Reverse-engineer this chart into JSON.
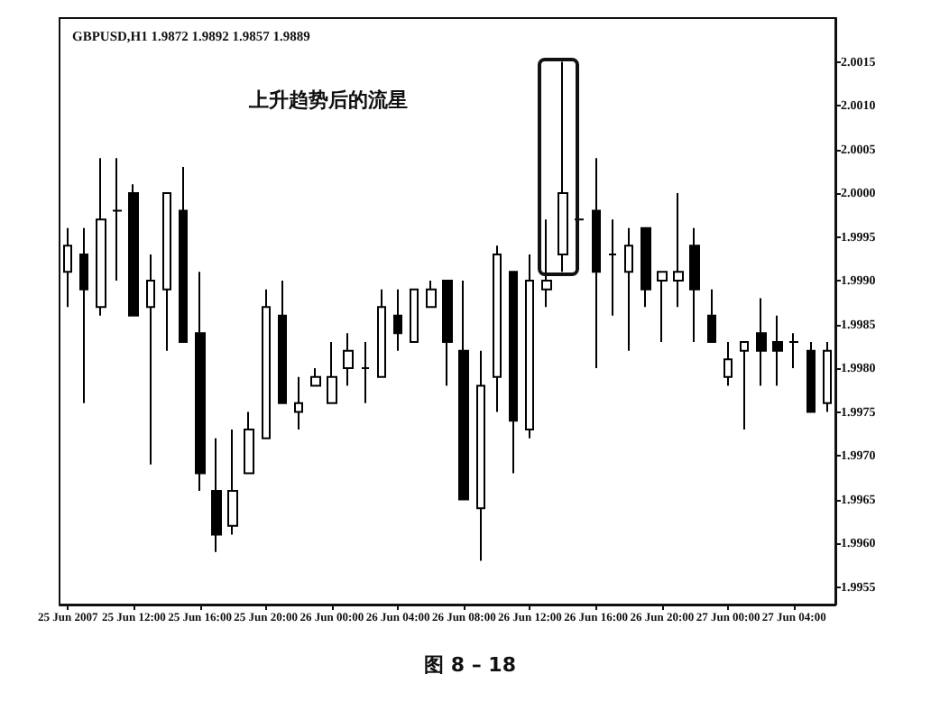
{
  "chart_data": {
    "type": "candlestick",
    "title": "GBPUSD,H1 1.9872 1.9892 1.9857 1.9889",
    "annotations": [
      "上升趋势后的流星",
      "图 8 – 18"
    ],
    "categories": [
      "25 Jun 2007",
      null,
      null,
      null,
      "25 Jun 12:00",
      null,
      null,
      null,
      "25 Jun 16:00",
      null,
      null,
      null,
      "25 Jun 20:00",
      null,
      null,
      null,
      "26 Jun 00:00",
      null,
      null,
      null,
      "26 Jun 04:00",
      null,
      null,
      null,
      "26 Jun 08:00",
      null,
      null,
      null,
      "26 Jun 12:00",
      null,
      null,
      null,
      "26 Jun 16:00",
      null,
      null,
      null,
      "26 Jun 20:00",
      null,
      null,
      null,
      "27 Jun 00:00",
      null,
      null,
      null,
      "27 Jun 04:00",
      null,
      null
    ],
    "ohlc": [
      [
        1.9991,
        1.9996,
        1.9987,
        1.9994
      ],
      [
        1.9993,
        1.9996,
        1.9976,
        1.9989
      ],
      [
        1.9987,
        2.0004,
        1.9986,
        1.9997
      ],
      [
        1.9998,
        2.0004,
        1.999,
        1.9998
      ],
      [
        2.0,
        2.0001,
        1.9986,
        1.9986
      ],
      [
        1.9987,
        1.9993,
        1.9969,
        1.999
      ],
      [
        1.9989,
        2.0,
        1.9982,
        2.0
      ],
      [
        1.9998,
        2.0003,
        1.9983,
        1.9983
      ],
      [
        1.9984,
        1.9991,
        1.9966,
        1.9968
      ],
      [
        1.9966,
        1.9972,
        1.9959,
        1.9961
      ],
      [
        1.9962,
        1.9973,
        1.9961,
        1.9966
      ],
      [
        1.9968,
        1.9975,
        1.9968,
        1.9973
      ],
      [
        1.9972,
        1.9989,
        1.9972,
        1.9987
      ],
      [
        1.9986,
        1.999,
        1.9976,
        1.9976
      ],
      [
        1.9975,
        1.9979,
        1.9973,
        1.9976
      ],
      [
        1.9978,
        1.998,
        1.9978,
        1.9979
      ],
      [
        1.9976,
        1.9983,
        1.9976,
        1.9979
      ],
      [
        1.998,
        1.9984,
        1.9978,
        1.9982
      ],
      [
        1.998,
        1.9983,
        1.9976,
        1.998
      ],
      [
        1.9979,
        1.9989,
        1.9979,
        1.9987
      ],
      [
        1.9986,
        1.9989,
        1.9982,
        1.9984
      ],
      [
        1.9983,
        1.9989,
        1.9983,
        1.9989
      ],
      [
        1.9987,
        1.999,
        1.9987,
        1.9989
      ],
      [
        1.999,
        1.999,
        1.9978,
        1.9983
      ],
      [
        1.9982,
        1.999,
        1.9965,
        1.9965
      ],
      [
        1.9964,
        1.9982,
        1.9958,
        1.9978
      ],
      [
        1.9979,
        1.9994,
        1.9975,
        1.9993
      ],
      [
        1.9991,
        1.9991,
        1.9968,
        1.9974
      ],
      [
        1.9973,
        1.9993,
        1.9972,
        1.999
      ],
      [
        1.9989,
        1.9997,
        1.9987,
        1.999
      ],
      [
        1.9993,
        2.0015,
        1.9991,
        2.0
      ],
      [
        1.9997,
        1.9998,
        1.9996,
        1.9997
      ],
      [
        1.9998,
        2.0004,
        1.998,
        1.9991
      ],
      [
        1.9993,
        1.9997,
        1.9986,
        1.9993
      ],
      [
        1.9991,
        1.9996,
        1.9982,
        1.9994
      ],
      [
        1.9996,
        1.9996,
        1.9987,
        1.9989
      ],
      [
        1.999,
        1.9991,
        1.9983,
        1.9991
      ],
      [
        1.999,
        2.0,
        1.9987,
        1.9991
      ],
      [
        1.9994,
        1.9996,
        1.9983,
        1.9989
      ],
      [
        1.9986,
        1.9989,
        1.9983,
        1.9983
      ],
      [
        1.9979,
        1.9983,
        1.9978,
        1.9981
      ],
      [
        1.9982,
        1.9983,
        1.9973,
        1.9983
      ],
      [
        1.9984,
        1.9988,
        1.9978,
        1.9982
      ],
      [
        1.9983,
        1.9986,
        1.9978,
        1.9982
      ],
      [
        1.9983,
        1.9984,
        1.998,
        1.9983
      ],
      [
        1.9982,
        1.9983,
        1.9975,
        1.9975
      ],
      [
        1.9976,
        1.9983,
        1.9975,
        1.9982
      ]
    ],
    "ylim": [
      1.9953,
      2.002
    ],
    "yticks": [
      1.9955,
      {
        "value": 1.996,
        "label": "1.9960"
      },
      1.9965,
      {
        "value": 1.997,
        "label": "1.9970"
      },
      1.9975,
      {
        "value": 1.998,
        "label": "1.9980"
      },
      1.9985,
      {
        "value": 1.999,
        "label": "1.9990"
      },
      1.9995,
      {
        "value": 2.0,
        "label": "2.0000"
      },
      2.0005,
      {
        "value": 2.001,
        "label": "2.0010"
      },
      2.0015
    ],
    "grid": false
  }
}
